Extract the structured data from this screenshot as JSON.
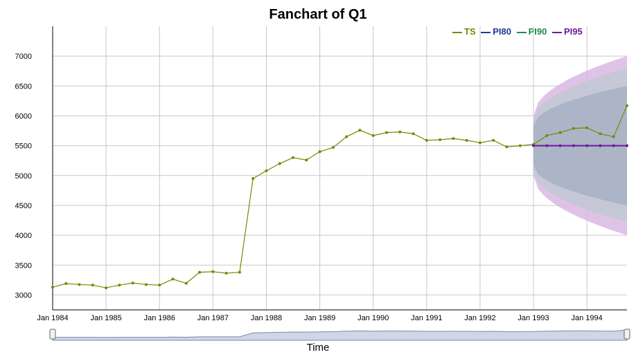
{
  "chart_data": {
    "type": "line",
    "title": "Fanchart of Q1",
    "xlabel": "Time",
    "ylabel": "",
    "ylim": [
      2750,
      7500
    ],
    "y_ticks": [
      3000,
      3500,
      4000,
      4500,
      5000,
      5500,
      6000,
      6500,
      7000
    ],
    "x_ticks": [
      "Jan 1984",
      "Jan 1985",
      "Jan 1986",
      "Jan 1987",
      "Jan 1988",
      "Jan 1989",
      "Jan 1990",
      "Jan 1991",
      "Jan 1992",
      "Jan 1993",
      "Jan 1994"
    ],
    "x_start": "1984-01",
    "x_end": "1994-10",
    "grid": true,
    "legend_position": "top-right",
    "legend": [
      {
        "name": "TS",
        "color": "#6b8e00"
      },
      {
        "name": "PI80",
        "color": "#1f3a93"
      },
      {
        "name": "PI90",
        "color": "#1e8a4c"
      },
      {
        "name": "PI95",
        "color": "#6a1b9a"
      }
    ],
    "series": [
      {
        "name": "TS",
        "color": "#6b8e00",
        "x": [
          "1984-01",
          "1984-04",
          "1984-07",
          "1984-10",
          "1985-01",
          "1985-04",
          "1985-07",
          "1985-10",
          "1986-01",
          "1986-04",
          "1986-07",
          "1986-10",
          "1987-01",
          "1987-04",
          "1987-07",
          "1987-10",
          "1988-01",
          "1988-04",
          "1988-07",
          "1988-10",
          "1989-01",
          "1989-04",
          "1989-07",
          "1989-10",
          "1990-01",
          "1990-04",
          "1990-07",
          "1990-10",
          "1991-01",
          "1991-04",
          "1991-07",
          "1991-10",
          "1992-01",
          "1992-04",
          "1992-07",
          "1992-10",
          "1993-01",
          "1993-04",
          "1993-07",
          "1993-10",
          "1994-01",
          "1994-04",
          "1994-07",
          "1994-10"
        ],
        "values": [
          3130,
          3190,
          3175,
          3165,
          3120,
          3165,
          3200,
          3175,
          3165,
          3265,
          3195,
          3380,
          3390,
          3365,
          3380,
          4950,
          5080,
          5200,
          5300,
          5260,
          5400,
          5470,
          5650,
          5760,
          5670,
          5720,
          5730,
          5700,
          5590,
          5600,
          5620,
          5590,
          5550,
          5590,
          5480,
          5500,
          5520,
          5670,
          5720,
          5790,
          5800,
          5700,
          5650,
          6170
        ]
      },
      {
        "name": "PI95",
        "color": "#6a1b9a",
        "x": [
          "1993-01",
          "1993-04",
          "1993-07",
          "1993-10",
          "1994-01",
          "1994-04",
          "1994-07",
          "1994-10"
        ],
        "values": [
          5500,
          5500,
          5500,
          5500,
          5500,
          5500,
          5500,
          5500
        ]
      }
    ],
    "bands": [
      {
        "name": "PI95",
        "color": "#d9b8e3",
        "from": "1993-01",
        "to": "1994-10",
        "lower": [
          5000,
          4000
        ],
        "upper": [
          6000,
          7000
        ]
      },
      {
        "name": "PI90",
        "color": "#c2c8d4",
        "from": "1993-01",
        "to": "1994-10",
        "lower": [
          5080,
          4220
        ],
        "upper": [
          5920,
          6800
        ]
      },
      {
        "name": "PI80",
        "color": "#a7b0c4",
        "from": "1993-01",
        "to": "1994-10",
        "lower": [
          5170,
          4500
        ],
        "upper": [
          5830,
          6500
        ]
      }
    ]
  }
}
